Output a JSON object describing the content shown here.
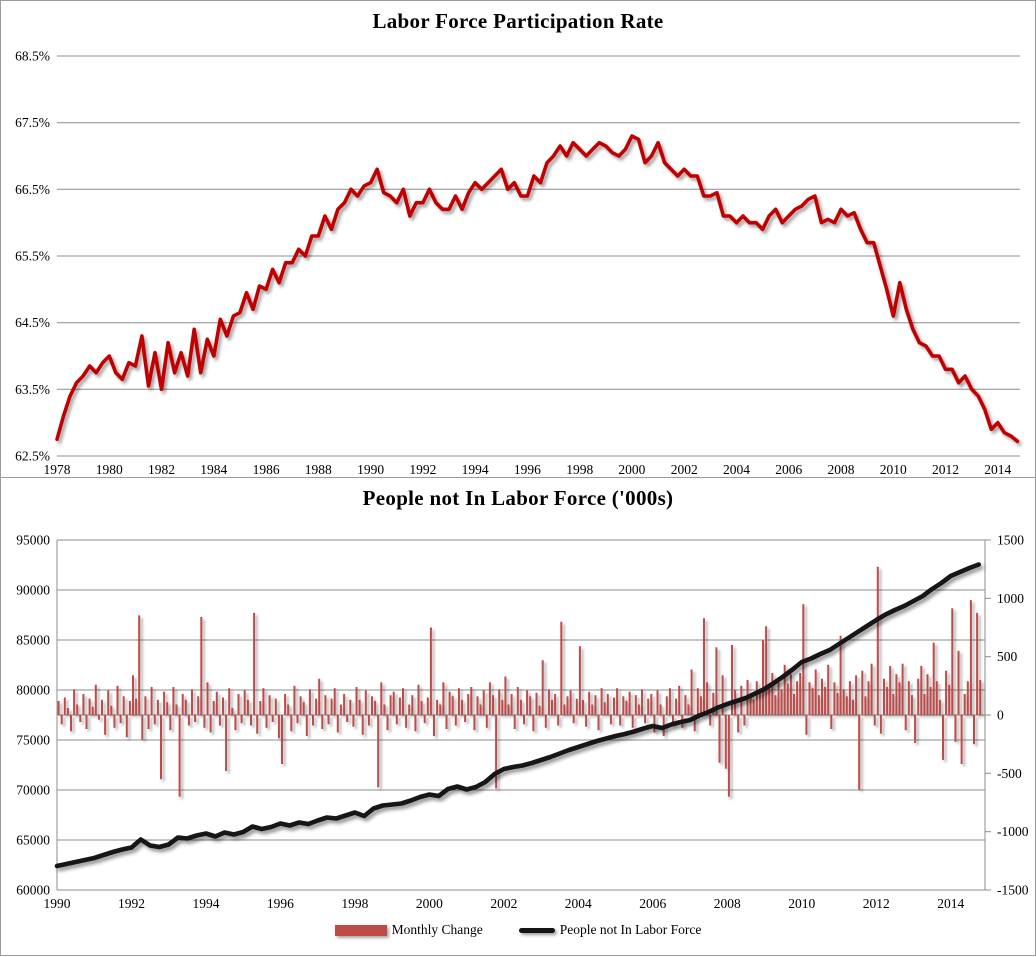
{
  "chart_data": [
    {
      "type": "line",
      "title": "Labor Force Participation Rate",
      "line_color": "#C00000",
      "grid_color": "#8c8c8c",
      "xlim": [
        1978,
        2014.85
      ],
      "ylim": [
        62.5,
        68.5
      ],
      "x_ticks": [
        1978,
        1980,
        1982,
        1984,
        1986,
        1988,
        1990,
        1992,
        1994,
        1996,
        1998,
        2000,
        2002,
        2004,
        2006,
        2008,
        2010,
        2012,
        2014
      ],
      "y_ticks": [
        {
          "v": 62.5,
          "label": "62.5%"
        },
        {
          "v": 63.5,
          "label": "63.5%"
        },
        {
          "v": 64.5,
          "label": "64.5%"
        },
        {
          "v": 65.5,
          "label": "65.5%"
        },
        {
          "v": 66.5,
          "label": "66.5%"
        },
        {
          "v": 67.5,
          "label": "67.5%"
        },
        {
          "v": 68.5,
          "label": "68.5%"
        }
      ],
      "x_start": 1978,
      "x_step": 0.25,
      "values": [
        62.75,
        63.1,
        63.4,
        63.6,
        63.7,
        63.85,
        63.75,
        63.9,
        64.0,
        63.75,
        63.65,
        63.9,
        63.85,
        64.3,
        63.55,
        64.05,
        63.5,
        64.2,
        63.75,
        64.05,
        63.7,
        64.4,
        63.75,
        64.25,
        64.0,
        64.55,
        64.3,
        64.6,
        64.65,
        64.95,
        64.7,
        65.05,
        65.0,
        65.3,
        65.1,
        65.4,
        65.4,
        65.6,
        65.5,
        65.8,
        65.8,
        66.1,
        65.9,
        66.2,
        66.3,
        66.5,
        66.4,
        66.55,
        66.6,
        66.8,
        66.45,
        66.4,
        66.3,
        66.5,
        66.1,
        66.3,
        66.3,
        66.5,
        66.3,
        66.2,
        66.2,
        66.4,
        66.2,
        66.45,
        66.6,
        66.5,
        66.6,
        66.7,
        66.8,
        66.5,
        66.6,
        66.4,
        66.4,
        66.7,
        66.6,
        66.9,
        67.0,
        67.15,
        67.0,
        67.2,
        67.1,
        67.0,
        67.1,
        67.2,
        67.15,
        67.05,
        67.0,
        67.1,
        67.3,
        67.25,
        66.9,
        67.0,
        67.2,
        66.9,
        66.8,
        66.7,
        66.8,
        66.7,
        66.7,
        66.4,
        66.4,
        66.45,
        66.1,
        66.1,
        66.0,
        66.1,
        66.0,
        66.0,
        65.9,
        66.1,
        66.2,
        66.0,
        66.1,
        66.2,
        66.25,
        66.35,
        66.4,
        66.0,
        66.05,
        66.0,
        66.2,
        66.1,
        66.15,
        65.9,
        65.7,
        65.7,
        65.35,
        65.0,
        64.6,
        65.1,
        64.7,
        64.4,
        64.2,
        64.15,
        64.0,
        64.0,
        63.8,
        63.8,
        63.6,
        63.7,
        63.5,
        63.4,
        63.2,
        62.9,
        63.0,
        62.85,
        62.8,
        62.72
      ]
    },
    {
      "type": "combo",
      "title": "People not In Labor Force ('000s)",
      "grid_color": "#8c8c8c",
      "xlim": [
        1990,
        2014.92
      ],
      "x_ticks": [
        1990,
        1992,
        1994,
        1996,
        1998,
        2000,
        2002,
        2004,
        2006,
        2008,
        2010,
        2012,
        2014
      ],
      "left_axis": {
        "lim": [
          60000,
          95000
        ],
        "ticks": [
          {
            "v": 60000,
            "label": "60000"
          },
          {
            "v": 65000,
            "label": "65000"
          },
          {
            "v": 70000,
            "label": "70000"
          },
          {
            "v": 75000,
            "label": "75000"
          },
          {
            "v": 80000,
            "label": "80000"
          },
          {
            "v": 85000,
            "label": "85000"
          },
          {
            "v": 90000,
            "label": "90000"
          },
          {
            "v": 95000,
            "label": "95000"
          }
        ]
      },
      "right_axis": {
        "lim": [
          -1500,
          1500
        ],
        "ticks": [
          {
            "v": -1500,
            "label": "-1500"
          },
          {
            "v": -1000,
            "label": "-1000"
          },
          {
            "v": -500,
            "label": "-500"
          },
          {
            "v": 0,
            "label": "0"
          },
          {
            "v": 500,
            "label": "500"
          },
          {
            "v": 1000,
            "label": "1000"
          },
          {
            "v": 1500,
            "label": "1500"
          }
        ]
      },
      "bars": {
        "name": "Monthly Change",
        "color": "#BE4B48",
        "x_start": 1990,
        "x_step": 0.0833333,
        "values": [
          120,
          -80,
          150,
          60,
          -140,
          220,
          90,
          -60,
          180,
          -120,
          140,
          70,
          260,
          -40,
          130,
          -170,
          210,
          80,
          -110,
          250,
          -70,
          160,
          -190,
          120,
          340,
          140,
          855,
          -210,
          160,
          -120,
          240,
          -80,
          130,
          -550,
          200,
          110,
          -130,
          240,
          90,
          -700,
          180,
          130,
          -90,
          220,
          -60,
          160,
          840,
          -110,
          280,
          -150,
          120,
          200,
          -90,
          150,
          -480,
          230,
          60,
          -130,
          180,
          -70,
          210,
          130,
          -90,
          875,
          -160,
          120,
          230,
          -110,
          170,
          -60,
          140,
          -200,
          -420,
          180,
          90,
          -140,
          250,
          -70,
          160,
          110,
          -180,
          220,
          -90,
          140,
          310,
          -120,
          170,
          -80,
          140,
          230,
          -150,
          90,
          180,
          -60,
          130,
          -100,
          240,
          130,
          -170,
          210,
          -90,
          160,
          120,
          -620,
          280,
          90,
          -130,
          170,
          200,
          -80,
          150,
          230,
          -110,
          90,
          170,
          -140,
          260,
          120,
          -70,
          150,
          750,
          -180,
          130,
          90,
          280,
          -120,
          200,
          160,
          -90,
          230,
          130,
          -60,
          180,
          240,
          -130,
          160,
          90,
          210,
          -110,
          280,
          170,
          -630,
          220,
          130,
          330,
          90,
          180,
          -120,
          240,
          130,
          -80,
          210,
          160,
          -140,
          190,
          80,
          470,
          -110,
          220,
          130,
          180,
          -90,
          800,
          90,
          160,
          210,
          -70,
          140,
          590,
          130,
          -100,
          200,
          90,
          170,
          -130,
          230,
          110,
          180,
          -80,
          150,
          230,
          -90,
          160,
          120,
          200,
          -110,
          170,
          90,
          220,
          -70,
          140,
          180,
          -150,
          210,
          90,
          -180,
          160,
          230,
          -90,
          140,
          250,
          -110,
          170,
          90,
          390,
          -140,
          230,
          160,
          830,
          280,
          -90,
          190,
          580,
          -410,
          340,
          -460,
          -700,
          600,
          210,
          -150,
          250,
          -90,
          300,
          180,
          130,
          290,
          220,
          640,
          760,
          240,
          360,
          170,
          290,
          220,
          430,
          270,
          350,
          180,
          290,
          360,
          950,
          -170,
          280,
          230,
          390,
          170,
          310,
          240,
          430,
          -120,
          280,
          190,
          680,
          220,
          160,
          290,
          130,
          340,
          -640,
          380,
          160,
          290,
          440,
          -90,
          1270,
          -160,
          310,
          240,
          420,
          180,
          350,
          280,
          440,
          -130,
          290,
          170,
          -240,
          310,
          420,
          180,
          350,
          240,
          620,
          290,
          130,
          -385,
          380,
          260,
          915,
          -230,
          550,
          -420,
          180,
          290,
          985,
          -250,
          875,
          300
        ]
      },
      "line": {
        "name": "People not In Labor Force",
        "color": "#141414",
        "x_start": 1990,
        "x_step": 0.25,
        "values": [
          62400,
          62600,
          62800,
          63000,
          63200,
          63500,
          63800,
          64050,
          64250,
          65050,
          64450,
          64300,
          64550,
          65250,
          65150,
          65450,
          65650,
          65350,
          65750,
          65550,
          65800,
          66350,
          66100,
          66300,
          66650,
          66450,
          66750,
          66600,
          66950,
          67250,
          67150,
          67450,
          67750,
          67400,
          68150,
          68450,
          68550,
          68650,
          68950,
          69300,
          69550,
          69400,
          70100,
          70350,
          70050,
          70300,
          70800,
          71600,
          72100,
          72300,
          72450,
          72700,
          73000,
          73300,
          73650,
          74000,
          74300,
          74600,
          74900,
          75150,
          75400,
          75600,
          75850,
          76150,
          76400,
          76200,
          76550,
          76800,
          77000,
          77450,
          77800,
          78250,
          78600,
          78900,
          79200,
          79650,
          80100,
          80700,
          81350,
          82050,
          82800,
          83150,
          83600,
          84000,
          84600,
          85200,
          85800,
          86400,
          87000,
          87550,
          88000,
          88400,
          88900,
          89400,
          90100,
          90700,
          91400,
          91800,
          92200,
          92550
        ]
      },
      "legend": [
        "Monthly Change",
        "People not In Labor Force"
      ]
    }
  ]
}
